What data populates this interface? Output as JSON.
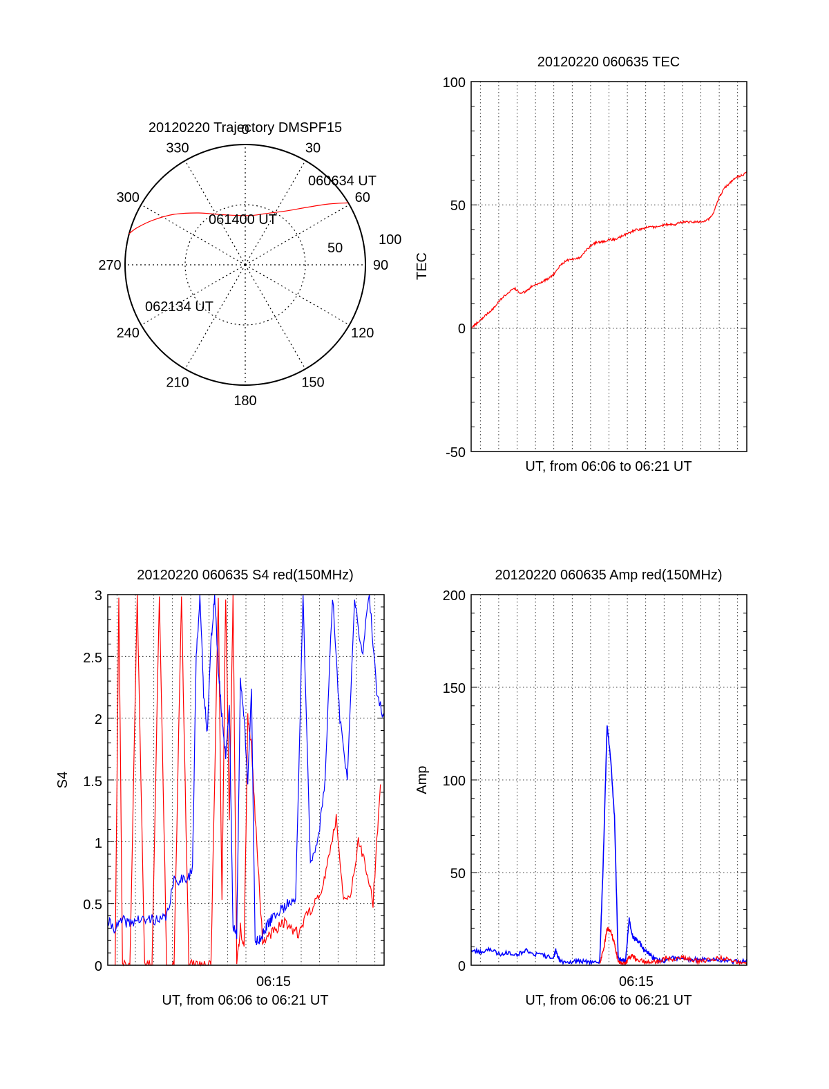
{
  "colors": {
    "red": "#ff0000",
    "blue": "#0000ff",
    "axis": "#000000",
    "grid": "#000000"
  },
  "chart_data": [
    {
      "id": "trajectory",
      "type": "polar",
      "title": "20120220 Trajectory DMSPF15",
      "angle_labels": [
        "0",
        "30",
        "60",
        "90",
        "120",
        "150",
        "180",
        "210",
        "240",
        "270",
        "300",
        "330"
      ],
      "radius_labels": [
        "50",
        "100"
      ],
      "radius_range": [
        0,
        100
      ],
      "grid": true,
      "track": {
        "color": "red",
        "points": [
          {
            "az": 59,
            "r": 100
          },
          {
            "az": 54,
            "r": 86
          },
          {
            "az": 47,
            "r": 70
          },
          {
            "az": 37,
            "r": 56
          },
          {
            "az": 22,
            "r": 46
          },
          {
            "az": 4,
            "r": 41
          },
          {
            "az": -25,
            "r": 46
          },
          {
            "az": -42,
            "r": 58
          },
          {
            "az": -55,
            "r": 73
          },
          {
            "az": -64,
            "r": 85
          },
          {
            "az": -71,
            "r": 95
          },
          {
            "az": -75,
            "r": 100
          }
        ]
      },
      "annotations": [
        "060634 UT",
        "061400 UT",
        "062134 UT"
      ]
    },
    {
      "id": "tec",
      "type": "line",
      "title": "20120220 060635 TEC",
      "xlabel": "UT, from 06:06 to 06:21 UT",
      "ylabel": "TEC",
      "xlim": [
        0,
        15
      ],
      "ylim": [
        -50,
        100
      ],
      "yticks": [
        "100",
        "50",
        "0",
        "-50"
      ],
      "grid": true,
      "series": [
        {
          "color": "red",
          "x": [
            0.0,
            0.3,
            0.6,
            0.9,
            1.2,
            1.5,
            1.8,
            2.1,
            2.4,
            2.7,
            3.0,
            3.3,
            3.6,
            3.9,
            4.2,
            4.5,
            4.8,
            5.1,
            5.4,
            5.7,
            6.0,
            6.3,
            6.6,
            6.9,
            7.2,
            7.5,
            7.8,
            8.1,
            8.4,
            8.7,
            9.0,
            9.3,
            9.6,
            9.9,
            10.2,
            10.5,
            10.8,
            11.1,
            11.4,
            11.7,
            12.0,
            12.3,
            12.6,
            12.9,
            13.2,
            13.5,
            13.8,
            14.1,
            14.4,
            14.7,
            15.0
          ],
          "y": [
            0,
            2,
            4,
            6,
            8,
            11,
            13,
            15,
            16,
            14,
            15,
            17,
            18,
            19,
            20,
            22,
            25,
            27,
            28,
            28,
            29,
            32,
            34,
            35,
            35,
            36,
            36,
            37,
            38,
            39,
            40,
            40,
            41,
            41,
            41,
            42,
            42,
            42,
            43,
            43,
            43,
            43,
            43,
            44,
            47,
            53,
            57,
            59,
            61,
            62,
            63
          ]
        }
      ]
    },
    {
      "id": "s4",
      "type": "line",
      "title": "20120220 060635 S4 red(150MHz)",
      "xlabel": "UT, from 06:06 to 06:21 UT",
      "ylabel": "S4",
      "xlim": [
        0,
        15
      ],
      "ylim": [
        0,
        3
      ],
      "yticks": [
        "3",
        "2.5",
        "2",
        "1.5",
        "1",
        "0.5",
        "0"
      ],
      "xticks": [
        {
          "value": 9,
          "label": "06:15"
        }
      ],
      "grid": true,
      "series": [
        {
          "color": "blue",
          "x": [
            0.0,
            0.4,
            0.8,
            1.2,
            1.6,
            2.0,
            2.4,
            2.8,
            3.2,
            3.6,
            4.0,
            4.4,
            4.6,
            4.8,
            5.0,
            5.2,
            5.4,
            5.6,
            5.8,
            6.0,
            6.2,
            6.4,
            6.6,
            6.8,
            7.0,
            7.2,
            7.4,
            7.6,
            7.8,
            8.0,
            8.2,
            8.4,
            8.6,
            8.8,
            9.0,
            9.4,
            9.8,
            10.2,
            10.6,
            11.0,
            11.4,
            11.8,
            12.2,
            12.6,
            13.0,
            13.4,
            13.8,
            14.2,
            14.6,
            15.0
          ],
          "y": [
            0.35,
            0.3,
            0.36,
            0.34,
            0.37,
            0.36,
            0.38,
            0.35,
            0.4,
            0.68,
            0.7,
            0.72,
            0.78,
            2.5,
            3.0,
            2.2,
            1.9,
            2.6,
            3.0,
            2.4,
            2.0,
            1.7,
            2.1,
            0.3,
            0.25,
            2.3,
            2.0,
            1.5,
            2.2,
            0.2,
            0.2,
            0.25,
            0.3,
            0.35,
            0.4,
            0.45,
            0.5,
            0.55,
            3.0,
            0.8,
            1.0,
            1.5,
            3.0,
            2.0,
            1.5,
            3.0,
            2.5,
            3.0,
            2.2,
            2.0
          ]
        },
        {
          "color": "red",
          "x": [
            0.4,
            0.6,
            0.8,
            1.2,
            1.6,
            2.0,
            2.4,
            2.8,
            3.2,
            3.6,
            4.0,
            4.4,
            4.8,
            5.2,
            5.6,
            6.0,
            6.2,
            6.4,
            6.6,
            6.8,
            7.0,
            7.2,
            7.4,
            7.6,
            7.8,
            8.0,
            8.4,
            8.8,
            9.2,
            9.6,
            10.0,
            10.4,
            10.8,
            11.2,
            11.6,
            12.0,
            12.4,
            12.8,
            13.2,
            13.6,
            14.0,
            14.4,
            14.8
          ],
          "y": [
            0.0,
            3.0,
            0.0,
            0.0,
            3.0,
            0.0,
            0.0,
            3.0,
            0.0,
            0.0,
            3.0,
            0.0,
            0.0,
            0.0,
            0.0,
            3.0,
            0.5,
            3.0,
            1.2,
            3.0,
            0.0,
            0.3,
            0.15,
            2.0,
            1.8,
            1.2,
            0.2,
            0.25,
            0.3,
            0.35,
            0.3,
            0.25,
            0.4,
            0.5,
            0.6,
            0.9,
            1.2,
            0.5,
            0.6,
            1.0,
            0.8,
            0.5,
            1.5
          ]
        }
      ]
    },
    {
      "id": "amp",
      "type": "line",
      "title": "20120220 060635 Amp red(150MHz)",
      "xlabel": "UT, from 06:06 to 06:21 UT",
      "ylabel": "Amp",
      "xlim": [
        0,
        15
      ],
      "ylim": [
        0,
        200
      ],
      "yticks": [
        "200",
        "150",
        "100",
        "50",
        "0"
      ],
      "xticks": [
        {
          "value": 9,
          "label": "06:15"
        }
      ],
      "grid": true,
      "series": [
        {
          "color": "blue",
          "x": [
            0.0,
            0.5,
            1.0,
            1.5,
            2.0,
            2.5,
            3.0,
            3.5,
            4.0,
            4.5,
            4.6,
            4.8,
            5.0,
            5.5,
            6.0,
            6.5,
            7.0,
            7.2,
            7.4,
            7.6,
            7.8,
            8.0,
            8.2,
            8.4,
            8.6,
            8.8,
            9.0,
            9.2,
            9.4,
            9.6,
            9.8,
            10.0,
            10.5,
            11.0,
            11.5,
            12.0,
            12.5,
            13.0,
            13.5,
            14.0,
            14.5,
            15.0
          ],
          "y": [
            8,
            7,
            9,
            6,
            7,
            6,
            8,
            6,
            5,
            4,
            8,
            3,
            2,
            2,
            2,
            2,
            2,
            60,
            130,
            110,
            80,
            4,
            3,
            2,
            25,
            15,
            14,
            12,
            8,
            7,
            5,
            3,
            2,
            4,
            3,
            3,
            3,
            3,
            3,
            2,
            2,
            2
          ]
        },
        {
          "color": "red",
          "x": [
            7.0,
            7.2,
            7.4,
            7.6,
            7.8,
            8.0,
            8.2,
            8.4,
            8.6,
            8.8,
            9.0,
            9.4,
            9.8,
            10.2,
            10.6,
            11.0,
            11.5,
            12.0,
            12.5,
            13.0,
            13.5,
            14.0,
            14.5,
            15.0
          ],
          "y": [
            1,
            8,
            20,
            18,
            12,
            2,
            1,
            1,
            4,
            5,
            3,
            2,
            2,
            2,
            4,
            3,
            4,
            3,
            2,
            3,
            4,
            3,
            2,
            1
          ]
        }
      ]
    }
  ]
}
